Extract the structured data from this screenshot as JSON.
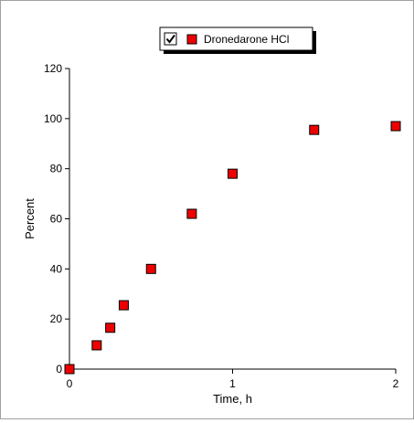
{
  "chart_data": {
    "type": "scatter",
    "title": "",
    "xlabel": "Time, h",
    "ylabel": "Percent",
    "xlim": [
      0,
      2
    ],
    "ylim": [
      0,
      120
    ],
    "x_ticks": [
      0,
      1,
      2
    ],
    "y_ticks": [
      0,
      20,
      40,
      60,
      80,
      100,
      120
    ],
    "grid": false,
    "legend": {
      "placement": "top-center",
      "checkbox_checked": true
    },
    "series": [
      {
        "name": "Dronedarone HCl",
        "marker": "square",
        "color": "#ee0000",
        "x": [
          0,
          0.167,
          0.25,
          0.333,
          0.5,
          0.75,
          1,
          1.5,
          2
        ],
        "y": [
          0,
          9.5,
          16.5,
          25.5,
          40,
          62,
          78,
          95.5,
          97
        ]
      }
    ]
  }
}
